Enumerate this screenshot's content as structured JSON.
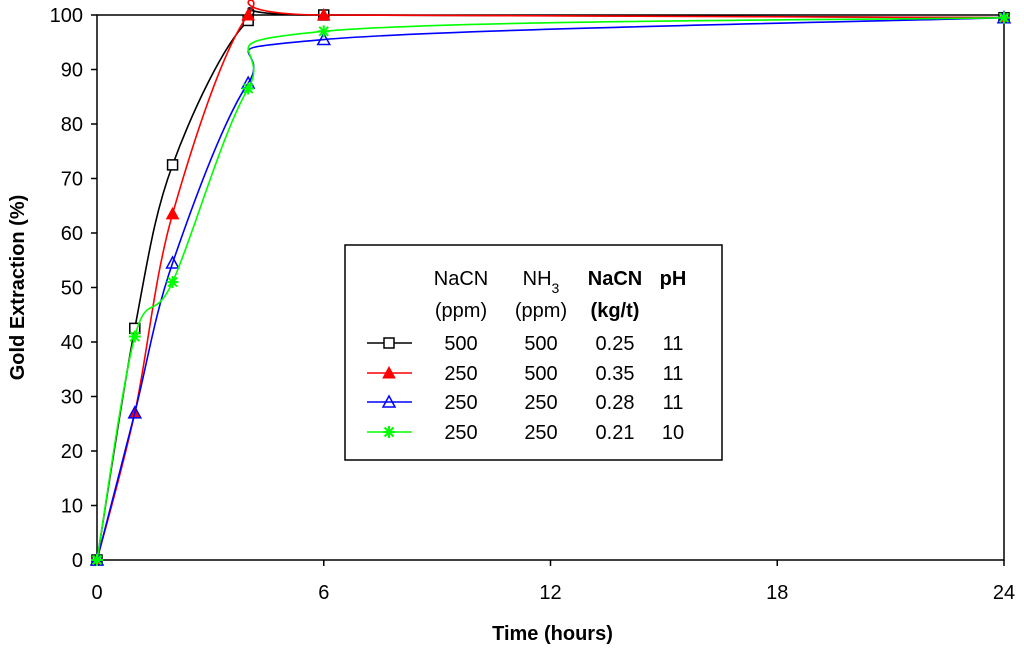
{
  "chart_data": {
    "type": "line",
    "title": "",
    "xlabel": "Time (hours)",
    "ylabel": "Gold Extraction (%)",
    "xlim": [
      0,
      24
    ],
    "ylim": [
      0,
      100
    ],
    "x_ticks": [
      0,
      6,
      12,
      18,
      24
    ],
    "y_ticks": [
      0,
      10,
      20,
      30,
      40,
      50,
      60,
      70,
      80,
      90,
      100
    ],
    "grid": false,
    "legend_position": "center-right",
    "legend": {
      "headers": [
        {
          "line1": "NaCN",
          "line2": "(ppm)"
        },
        {
          "line1": "NH",
          "sub": "3",
          "line2": "(ppm)"
        },
        {
          "line1": "NaCN",
          "line2": "(kg/t)"
        },
        {
          "line1": "pH",
          "line2": ""
        }
      ]
    },
    "series": [
      {
        "name": "500 ppm NaCN, 500 ppm NH3",
        "nacn_ppm": "500",
        "nh3_ppm": "500",
        "nacn_kgt": "0.25",
        "ph": "11",
        "color": "#000000",
        "marker": "square-open",
        "x": [
          0,
          1,
          2,
          4,
          6,
          24
        ],
        "y": [
          0,
          42.5,
          72.5,
          99,
          100,
          99.5
        ]
      },
      {
        "name": "250 ppm NaCN, 500 ppm NH3",
        "nacn_ppm": "250",
        "nh3_ppm": "500",
        "nacn_kgt": "0.35",
        "ph": "11",
        "color": "#ff0000",
        "marker": "triangle-filled",
        "x": [
          0,
          1,
          2,
          4,
          6,
          24
        ],
        "y": [
          0,
          27,
          63.5,
          100,
          100,
          99.5
        ]
      },
      {
        "name": "250 ppm NaCN, 250 ppm NH3, pH 11",
        "nacn_ppm": "250",
        "nh3_ppm": "250",
        "nacn_kgt": "0.28",
        "ph": "11",
        "color": "#0000ff",
        "marker": "triangle-open",
        "x": [
          0,
          1,
          2,
          4,
          6,
          24
        ],
        "y": [
          0,
          27,
          54.5,
          87.5,
          95.5,
          99.5
        ]
      },
      {
        "name": "250 ppm NaCN, 250 ppm NH3, pH 10",
        "nacn_ppm": "250",
        "nh3_ppm": "250",
        "nacn_kgt": "0.21",
        "ph": "10",
        "color": "#00ff00",
        "marker": "asterisk",
        "x": [
          0,
          1,
          2,
          4,
          6,
          24
        ],
        "y": [
          0,
          41,
          51,
          86.5,
          97,
          99.5
        ]
      }
    ]
  }
}
